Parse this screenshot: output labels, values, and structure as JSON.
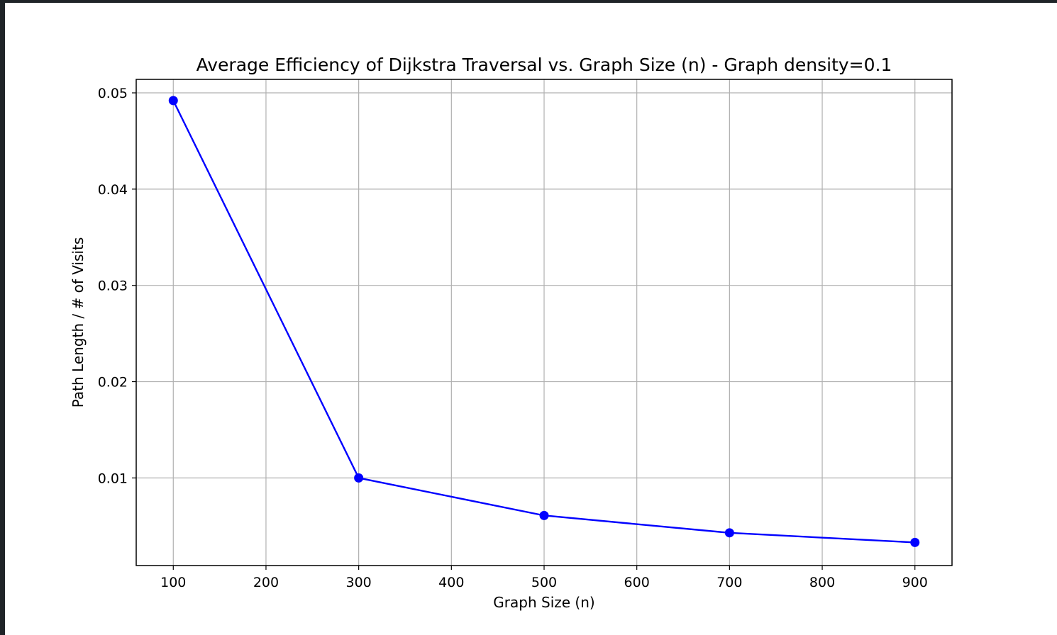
{
  "chart_data": {
    "type": "line",
    "title": "Average Efficiency of Dijkstra Traversal vs. Graph Size (n) - Graph density=0.1",
    "xlabel": "Graph Size (n)",
    "ylabel": "Path Length / # of Visits",
    "x": [
      100,
      300,
      500,
      700,
      900
    ],
    "series": [
      {
        "values": [
          0.0492,
          0.01,
          0.0061,
          0.0043,
          0.0033
        ],
        "color": "#0000ff",
        "marker": "circle"
      }
    ],
    "xticks": [
      100,
      200,
      300,
      400,
      500,
      600,
      700,
      800,
      900
    ],
    "xtick_labels": [
      "100",
      "200",
      "300",
      "400",
      "500",
      "600",
      "700",
      "800",
      "900"
    ],
    "yticks": [
      0.01,
      0.02,
      0.03,
      0.04,
      0.05
    ],
    "ytick_labels": [
      "0.01",
      "0.02",
      "0.03",
      "0.04",
      "0.05"
    ],
    "xlim": [
      60,
      940
    ],
    "ylim": [
      0.0009,
      0.0514
    ],
    "grid": true,
    "grid_color": "#b0b0b0"
  }
}
